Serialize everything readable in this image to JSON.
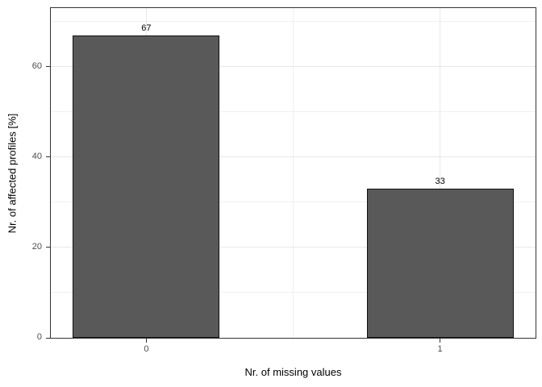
{
  "figure": {
    "background": "#FFFFFF"
  },
  "chart_data": {
    "type": "bar",
    "title": "",
    "xlabel": "Nr. of missing values",
    "ylabel": "Nr. of affected profiles [%]",
    "categories": [
      "0",
      "1"
    ],
    "x": [
      0,
      1
    ],
    "values": [
      67,
      33
    ],
    "bar_labels": [
      "67",
      "33"
    ],
    "x_tick_labels": [
      "0",
      "1"
    ],
    "y_tick_labels": [
      "0",
      "20",
      "40",
      "60"
    ],
    "xticks": [
      0,
      1
    ],
    "xticks_minor": [
      0.5
    ],
    "yticks": [
      0,
      20,
      40,
      60
    ],
    "yticks_minor": [
      10,
      30,
      50,
      70
    ],
    "xlim": [
      -0.325,
      1.325
    ],
    "ylim": [
      0,
      73
    ],
    "bar_width": 0.5,
    "legend": "none",
    "grid": "major+minor",
    "colors": {
      "bar_fill": "#595959",
      "bar_stroke": "#111111",
      "grid_major": "#E8E8E8",
      "grid_minor": "#F0F0F0",
      "panel_border": "#333333",
      "tick_mark": "#333333",
      "tick_label": "#4D4D4D",
      "axis_title": "#000000",
      "bar_label": "#000000",
      "panel_bg": "#FFFFFF"
    }
  }
}
